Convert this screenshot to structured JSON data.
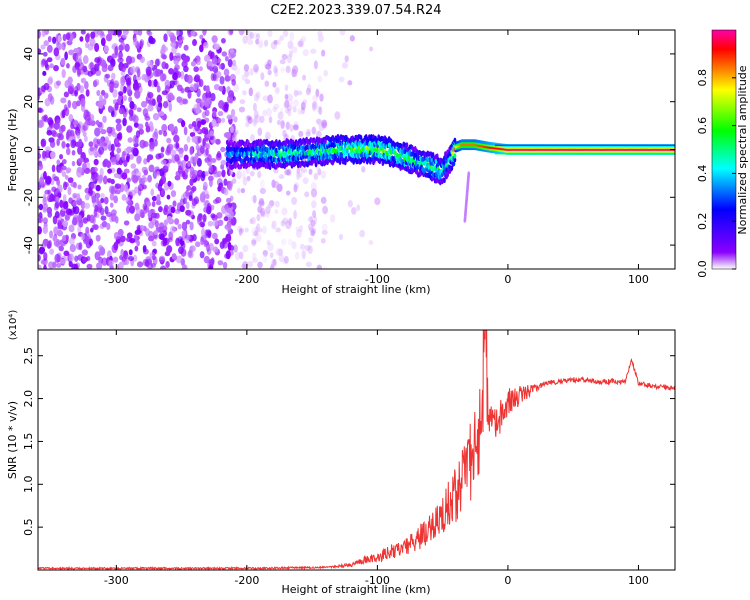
{
  "title": "C2E2.2023.339.07.54.R24",
  "colorbar": {
    "label": "Normalized spectral amplitude",
    "ticks": [
      "0.0",
      "0.2",
      "0.4",
      "0.6",
      "0.8"
    ],
    "range": [
      0,
      1
    ],
    "colormap": [
      "#ffffff",
      "#8b00ff",
      "#0000ff",
      "#00ffff",
      "#00ff00",
      "#ffff00",
      "#ff0000",
      "#ff00aa"
    ]
  },
  "chart_data": [
    {
      "type": "heatmap",
      "xlabel": "Height of straight line (km)",
      "ylabel": "Frequency (Hz)",
      "xlim": [
        -360,
        128
      ],
      "ylim": [
        -50,
        50
      ],
      "xticks": [
        -300,
        -200,
        -100,
        0,
        100
      ],
      "xtick_labels": [
        "-300",
        "-200",
        "-100",
        "0",
        "100"
      ],
      "yticks": [
        -40,
        -20,
        0,
        20,
        40
      ],
      "ytick_labels": [
        "-40",
        "-20",
        "0",
        "20",
        "40"
      ],
      "ridge": {
        "x": [
          -210,
          -180,
          -150,
          -130,
          -115,
          -100,
          -90,
          -80,
          -70,
          -60,
          -50,
          -45,
          -40,
          -35,
          -25,
          -15,
          0,
          50,
          128
        ],
        "y": [
          -2,
          -2,
          -1,
          0,
          0,
          0,
          -1,
          -3,
          -5,
          -7,
          -9,
          -5,
          1,
          2,
          2,
          1,
          0,
          0,
          0
        ],
        "amplitude": [
          0.35,
          0.45,
          0.45,
          0.5,
          0.55,
          0.55,
          0.5,
          0.5,
          0.45,
          0.5,
          0.45,
          0.4,
          0.7,
          0.8,
          0.8,
          0.85,
          0.95,
          0.95,
          0.95
        ]
      }
    },
    {
      "type": "line",
      "xlabel": "Height of straight line (km)",
      "ylabel": "SNR (10 * v/v)",
      "y_scale_label": "(x10⁴)",
      "xlim": [
        -360,
        128
      ],
      "ylim": [
        0,
        2.8
      ],
      "xticks": [
        -300,
        -200,
        -100,
        0,
        100
      ],
      "xtick_labels": [
        "-300",
        "-200",
        "-100",
        "0",
        "100"
      ],
      "yticks": [
        0.5,
        1.0,
        1.5,
        2.0,
        2.5
      ],
      "ytick_labels": [
        "0.5",
        "1.0",
        "1.5",
        "2.0",
        "2.5"
      ],
      "series": [
        {
          "color": "#ee3333",
          "x": [
            -360,
            -300,
            -200,
            -140,
            -120,
            -110,
            -100,
            -90,
            -80,
            -70,
            -60,
            -50,
            -40,
            -30,
            -25,
            -20,
            -18,
            -15,
            -10,
            -5,
            0,
            10,
            20,
            30,
            50,
            70,
            90,
            95,
            100,
            110,
            128
          ],
          "y": [
            0.02,
            0.02,
            0.02,
            0.03,
            0.05,
            0.1,
            0.12,
            0.18,
            0.22,
            0.3,
            0.4,
            0.55,
            0.75,
            1.0,
            1.3,
            1.5,
            2.8,
            1.7,
            1.7,
            1.8,
            1.95,
            2.05,
            2.12,
            2.18,
            2.22,
            2.2,
            2.2,
            2.45,
            2.18,
            2.15,
            2.12
          ]
        }
      ]
    }
  ]
}
